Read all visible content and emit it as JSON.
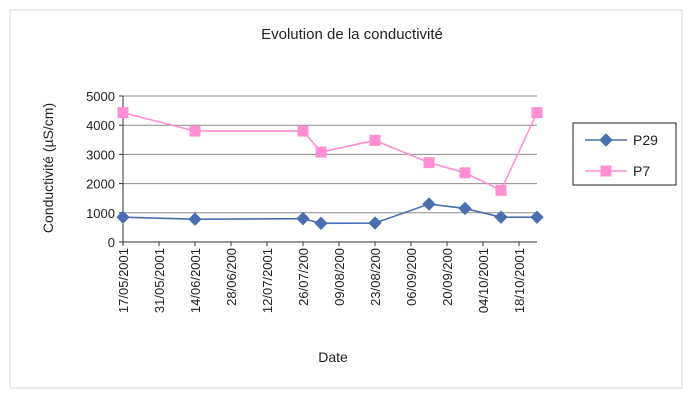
{
  "chart_data": {
    "type": "line",
    "title": "Evolution de la conductivité",
    "xlabel": "Date",
    "ylabel": "Conductivité (µS/cm)",
    "ylim": [
      0,
      5000
    ],
    "yticks": [
      0,
      1000,
      2000,
      3000,
      4000,
      5000
    ],
    "xlim": [
      "2001-05-17",
      "2001-10-25"
    ],
    "xticks": [
      {
        "date": "2001-05-17",
        "label": "17/05/2001"
      },
      {
        "date": "2001-05-31",
        "label": "31/05/2001"
      },
      {
        "date": "2001-06-14",
        "label": "14/06/2001"
      },
      {
        "date": "2001-06-28",
        "label": "28/06/200"
      },
      {
        "date": "2001-07-12",
        "label": "12/07/2001"
      },
      {
        "date": "2001-07-26",
        "label": "26/07/200"
      },
      {
        "date": "2001-08-09",
        "label": "09/08/200"
      },
      {
        "date": "2001-08-23",
        "label": "23/08/200"
      },
      {
        "date": "2001-09-06",
        "label": "06/09/200"
      },
      {
        "date": "2001-09-20",
        "label": "20/09/200"
      },
      {
        "date": "2001-10-04",
        "label": "04/10/2001"
      },
      {
        "date": "2001-10-18",
        "label": "18/10/2001"
      }
    ],
    "grid": true,
    "legend_position": "right",
    "series": [
      {
        "name": "P29",
        "color": "#4a6fb0",
        "marker": "diamond",
        "points": [
          {
            "x": "2001-05-17",
            "y": 850
          },
          {
            "x": "2001-06-14",
            "y": 780
          },
          {
            "x": "2001-07-26",
            "y": 800
          },
          {
            "x": "2001-08-02",
            "y": 640
          },
          {
            "x": "2001-08-23",
            "y": 650
          },
          {
            "x": "2001-09-13",
            "y": 1300
          },
          {
            "x": "2001-09-27",
            "y": 1150
          },
          {
            "x": "2001-10-11",
            "y": 850
          },
          {
            "x": "2001-10-25",
            "y": 850
          }
        ]
      },
      {
        "name": "P7",
        "color": "#ff8fd2",
        "marker": "square",
        "points": [
          {
            "x": "2001-05-17",
            "y": 4430
          },
          {
            "x": "2001-06-14",
            "y": 3800
          },
          {
            "x": "2001-07-26",
            "y": 3800
          },
          {
            "x": "2001-08-02",
            "y": 3080
          },
          {
            "x": "2001-08-23",
            "y": 3480
          },
          {
            "x": "2001-09-13",
            "y": 2720
          },
          {
            "x": "2001-09-27",
            "y": 2370
          },
          {
            "x": "2001-10-11",
            "y": 1770
          },
          {
            "x": "2001-10-25",
            "y": 4430
          }
        ]
      }
    ]
  }
}
